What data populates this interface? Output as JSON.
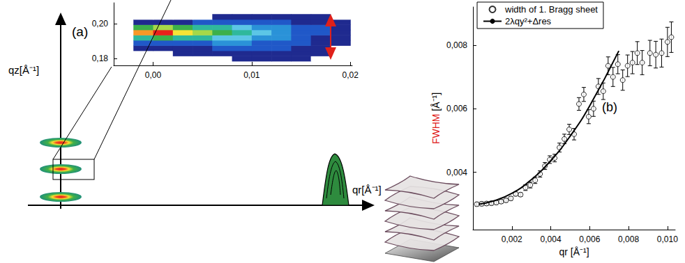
{
  "schematic": {
    "label": "(a)",
    "y_label": "qz[Å⁻¹]",
    "x_label": "qr[Å⁻¹]"
  },
  "chart_data": [
    {
      "type": "heatmap",
      "x": [
        -0.001,
        0.001,
        0.003,
        0.005,
        0.007,
        0.009,
        0.011,
        0.013,
        0.015,
        0.017,
        0.019
      ],
      "y": [
        0.18,
        0.183,
        0.186,
        0.189,
        0.192,
        0.195,
        0.198,
        0.201,
        0.204
      ],
      "values": [
        [
          0,
          0,
          0,
          0,
          0,
          1,
          1,
          1,
          1,
          0,
          0
        ],
        [
          0,
          0,
          1,
          1,
          1,
          1,
          1,
          1,
          1,
          1,
          0
        ],
        [
          1,
          1,
          1,
          1,
          2,
          2,
          2,
          2,
          1,
          1,
          0
        ],
        [
          2,
          2,
          2,
          2,
          3,
          3,
          2,
          2,
          2,
          1,
          1
        ],
        [
          5,
          6,
          5,
          5,
          4,
          4,
          3,
          3,
          2,
          1,
          1
        ],
        [
          9,
          10,
          8,
          7,
          6,
          5,
          4,
          3,
          2,
          2,
          1
        ],
        [
          6,
          7,
          6,
          5,
          5,
          4,
          3,
          3,
          2,
          2,
          1
        ],
        [
          1,
          1,
          1,
          2,
          2,
          2,
          2,
          2,
          1,
          1,
          1
        ],
        [
          0,
          0,
          0,
          0,
          1,
          1,
          1,
          1,
          1,
          1,
          0
        ]
      ],
      "xlim": [
        -0.004,
        0.0202
      ],
      "ylim": [
        0.176,
        0.212
      ],
      "xticks": [
        {
          "value": 0,
          "label": "0,00"
        },
        {
          "value": 0.01,
          "label": "0,01"
        },
        {
          "value": 0.02,
          "label": "0,02"
        }
      ],
      "yticks": [
        {
          "value": 0.18,
          "label": "0,18"
        },
        {
          "value": 0.2,
          "label": "0,20"
        }
      ]
    },
    {
      "type": "scatter",
      "title": "(b)",
      "x_label": "qr [Å⁻¹]",
      "y_label": "FWHM [Å⁻¹]",
      "xlim": [
        0,
        0.0104
      ],
      "ylim": [
        0.0022,
        0.0092
      ],
      "xticks": [
        {
          "value": 0.002,
          "label": "0,002"
        },
        {
          "value": 0.004,
          "label": "0,004"
        },
        {
          "value": 0.006,
          "label": "0,006"
        },
        {
          "value": 0.008,
          "label": "0,008"
        },
        {
          "value": 0.01,
          "label": "0,010"
        }
      ],
      "yticks": [
        {
          "value": 0.004,
          "label": "0,004"
        },
        {
          "value": 0.006,
          "label": "0,006"
        },
        {
          "value": 0.008,
          "label": "0,008"
        }
      ],
      "legend": "upper left",
      "grid": false,
      "series": [
        {
          "name": "width of 1. Bragg sheet",
          "type": "scatter",
          "marker": "open_circle",
          "color": "#000000",
          "x": [
            0.0002,
            0.00045,
            0.0007,
            0.00095,
            0.0012,
            0.00145,
            0.0017,
            0.00195,
            0.0022,
            0.00245,
            0.0027,
            0.00295,
            0.0032,
            0.00345,
            0.0037,
            0.00395,
            0.0042,
            0.00445,
            0.0047,
            0.00495,
            0.0052,
            0.00545,
            0.0057,
            0.00595,
            0.0062,
            0.00645,
            0.0067,
            0.00695,
            0.0072,
            0.00745,
            0.0077,
            0.00795,
            0.0082,
            0.00845,
            0.0087,
            0.0091,
            0.0094,
            0.0097,
            0.01,
            0.0102
          ],
          "values": [
            0.003,
            0.00301,
            0.00302,
            0.00303,
            0.00305,
            0.00308,
            0.00312,
            0.00318,
            0.00332,
            0.0033,
            0.00352,
            0.0036,
            0.00375,
            0.00395,
            0.0042,
            0.0044,
            0.00445,
            0.00478,
            0.00505,
            0.00535,
            0.0052,
            0.00615,
            0.00645,
            0.00575,
            0.006,
            0.0067,
            0.00655,
            0.00735,
            0.007,
            0.0074,
            0.0069,
            0.00735,
            0.00745,
            0.00775,
            0.00745,
            0.00775,
            0.0077,
            0.00775,
            0.0081,
            0.00825
          ],
          "errors": [
            6e-05,
            6e-05,
            6e-05,
            6e-05,
            6e-05,
            6e-05,
            6e-05,
            6e-05,
            6e-05,
            6e-05,
            9e-05,
            9e-05,
            0.0001,
            0.0001,
            0.00011,
            0.00012,
            0.00012,
            0.00014,
            0.00015,
            0.00016,
            0.00018,
            0.0002,
            0.00022,
            0.00022,
            0.00024,
            0.00025,
            0.00026,
            0.00028,
            0.0003,
            0.0003,
            0.00032,
            0.00034,
            0.00035,
            0.00036,
            0.00038,
            0.0004,
            0.00042,
            0.00044,
            0.00046,
            0.00048
          ]
        },
        {
          "name": "2λqy²+Δres",
          "type": "line",
          "line_style": "solid",
          "color": "#000000",
          "x": [
            0.0003,
            0.001,
            0.002,
            0.003,
            0.004,
            0.005,
            0.006,
            0.0075
          ],
          "values": [
            0.003,
            0.00309,
            0.00334,
            0.00377,
            0.00437,
            0.00514,
            0.00609,
            0.00782
          ]
        }
      ]
    }
  ]
}
